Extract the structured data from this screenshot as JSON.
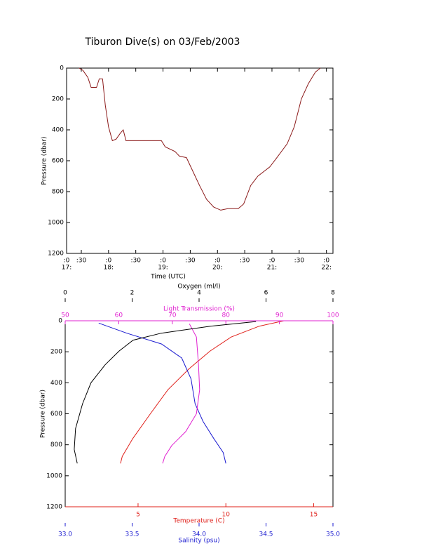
{
  "title": "Tiburon Dive(s) on 03/Feb/2003",
  "chart_data": [
    {
      "type": "line",
      "xlabel": "Time (UTC)",
      "ylabel": "Pressure (dbar)",
      "color": "#8b1a1a",
      "xlim": [
        17.23,
        22.12
      ],
      "ylim": [
        0,
        1200
      ],
      "y_inverted": true,
      "xticks": [
        {
          "value": 17.23,
          "label": ":0"
        },
        {
          "value": 17.5,
          "label": ":30"
        },
        {
          "value": 18,
          "label": ":0"
        },
        {
          "value": 18.5,
          "label": ":30"
        },
        {
          "value": 19,
          "label": ":0"
        },
        {
          "value": 19.5,
          "label": ":30"
        },
        {
          "value": 20,
          "label": ":0"
        },
        {
          "value": 20.5,
          "label": ":30"
        },
        {
          "value": 21,
          "label": ":0"
        },
        {
          "value": 21.5,
          "label": ":30"
        },
        {
          "value": 22,
          "label": ":0"
        }
      ],
      "xtick_hours": [
        {
          "value": 17.23,
          "label": "17:"
        },
        {
          "value": 18,
          "label": "18:"
        },
        {
          "value": 19,
          "label": "19:"
        },
        {
          "value": 20,
          "label": "20:"
        },
        {
          "value": 21,
          "label": "21:"
        },
        {
          "value": 22,
          "label": "22:"
        }
      ],
      "yticks": [
        0,
        200,
        400,
        600,
        800,
        1000,
        1200
      ],
      "x": [
        17.46,
        17.53,
        17.62,
        17.68,
        17.78,
        17.83,
        17.89,
        17.94,
        18.0,
        18.07,
        18.14,
        18.22,
        18.27,
        18.32,
        18.58,
        18.97,
        19.04,
        19.22,
        19.3,
        19.43,
        19.55,
        19.67,
        19.8,
        19.93,
        20.06,
        20.19,
        20.38,
        20.48,
        20.61,
        20.74,
        20.96,
        21.09,
        21.28,
        21.41,
        21.54,
        21.67,
        21.8,
        21.89
      ],
      "values": [
        0,
        15,
        60,
        125,
        125,
        70,
        70,
        240,
        380,
        470,
        460,
        420,
        400,
        470,
        470,
        470,
        510,
        540,
        570,
        580,
        670,
        760,
        850,
        900,
        920,
        910,
        910,
        880,
        760,
        700,
        640,
        580,
        490,
        380,
        200,
        100,
        25,
        0
      ]
    },
    {
      "type": "profile",
      "ylabel": "Pressure (dbar)",
      "ylim": [
        0,
        1200
      ],
      "y_inverted": true,
      "yticks": [
        0,
        200,
        400,
        600,
        800,
        1000,
        1200
      ],
      "series": [
        {
          "label": "Temperature (C)",
          "color": "#e0201a",
          "position": "bottom",
          "xlim": [
            0.85,
            16.1
          ],
          "xticks": [
            5,
            10,
            15
          ],
          "x": [
            13.3,
            11.9,
            10.3,
            9.1,
            7.9,
            6.7,
            5.7,
            4.7,
            4.1,
            4.0
          ],
          "values": [
            0,
            35,
            105,
            195,
            310,
            445,
            600,
            760,
            875,
            920
          ]
        },
        {
          "label": "Salinity (psu)",
          "color": "#1a1ad0",
          "position": "bottom",
          "xlim": [
            33,
            35
          ],
          "xticks": [
            {
              "value": 33,
              "label": "33.0"
            },
            {
              "value": 33.5,
              "label": "33.5"
            },
            {
              "value": 34,
              "label": "34.0"
            },
            {
              "value": 34.5,
              "label": "34.5"
            },
            {
              "value": 35,
              "label": "35.0"
            }
          ],
          "x": [
            33.25,
            33.46,
            33.72,
            33.87,
            33.94,
            33.97,
            34.03,
            34.11,
            34.18,
            34.2
          ],
          "values": [
            15,
            80,
            150,
            240,
            375,
            535,
            650,
            760,
            850,
            920
          ]
        },
        {
          "label": "Light Transmission (%)",
          "color": "#e020d0",
          "position": "top",
          "xlim": [
            50,
            100
          ],
          "xticks": [
            50,
            60,
            70,
            80,
            90,
            100
          ],
          "x": [
            73.2,
            74.5,
            74.9,
            75.1,
            74.5,
            72.5,
            69.9,
            68.6,
            68.2
          ],
          "values": [
            20,
            105,
            285,
            445,
            600,
            715,
            805,
            875,
            920
          ]
        },
        {
          "label": "Oxygen (ml/l)",
          "color": "#000000",
          "position": "top",
          "xlim": [
            0,
            8
          ],
          "xticks": [
            0,
            2,
            4,
            6,
            8
          ],
          "x": [
            5.7,
            4.34,
            2.87,
            2.03,
            1.61,
            1.19,
            0.77,
            0.52,
            0.31,
            0.27,
            0.36
          ],
          "values": [
            5,
            35,
            80,
            125,
            195,
            285,
            400,
            535,
            695,
            830,
            920
          ]
        }
      ]
    }
  ]
}
